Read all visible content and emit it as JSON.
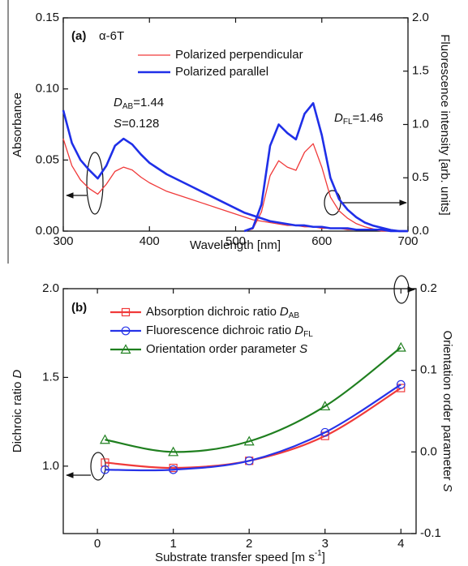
{
  "chart_data": [
    {
      "type": "line",
      "panel_label": "(a)",
      "compound": "α-6T",
      "x_label": "Wavelength [nm]",
      "y_label": "Absorbance",
      "y2_label": "Fluorescence intensity [arb. units]",
      "x": [
        300,
        310,
        320,
        330,
        340,
        350,
        360,
        370,
        380,
        390,
        400,
        410,
        420,
        430,
        440,
        450,
        460,
        470,
        480,
        490,
        500,
        510,
        520,
        530,
        540,
        550,
        560,
        570,
        580,
        590,
        600,
        610,
        620,
        630,
        640,
        650,
        660,
        670,
        680,
        690,
        700
      ],
      "xlim": [
        300,
        700
      ],
      "xticks": [
        300,
        400,
        500,
        600,
        700
      ],
      "ylim": [
        0,
        0.15
      ],
      "yticks": [
        {
          "value": 0,
          "label": "0.00"
        },
        {
          "value": 0.05,
          "label": "0.05"
        },
        {
          "value": 0.1,
          "label": "0.10"
        },
        {
          "value": 0.15,
          "label": "0.15"
        }
      ],
      "y2lim": [
        0,
        2
      ],
      "y2ticks": [
        {
          "value": 0,
          "label": "0.0"
        },
        0.5,
        {
          "value": 1,
          "label": "1.0"
        },
        1.5,
        {
          "value": 2,
          "label": "2.0"
        }
      ],
      "series": [
        {
          "name": "Polarized perpendicular",
          "color": "#f03a3a",
          "values": [
            0.065,
            0.046,
            0.036,
            0.03,
            0.026,
            0.033,
            0.042,
            0.045,
            0.043,
            0.038,
            0.034,
            0.031,
            0.028,
            0.026,
            0.024,
            0.022,
            0.02,
            0.018,
            0.016,
            0.014,
            0.012,
            0.01,
            0.008,
            0.007,
            0.006,
            0.005,
            0.004,
            0.004,
            0.003,
            0.003,
            0.002,
            0.002,
            0.002,
            0.001,
            0.001,
            0.001,
            0.001,
            0,
            0,
            0,
            0
          ],
          "fluorescence_values": [
            null,
            null,
            null,
            null,
            null,
            null,
            null,
            null,
            null,
            null,
            null,
            null,
            null,
            null,
            null,
            null,
            null,
            null,
            null,
            null,
            null,
            0,
            0.02,
            0.18,
            0.52,
            0.66,
            0.6,
            0.57,
            0.74,
            0.82,
            0.6,
            0.32,
            0.19,
            0.12,
            0.07,
            0.04,
            0.02,
            0.01,
            0,
            0,
            0
          ]
        },
        {
          "name": "Polarized parallel",
          "color": "#1f2fe8",
          "values": [
            0.085,
            0.062,
            0.05,
            0.043,
            0.037,
            0.046,
            0.06,
            0.065,
            0.061,
            0.054,
            0.048,
            0.044,
            0.04,
            0.037,
            0.034,
            0.031,
            0.028,
            0.025,
            0.022,
            0.019,
            0.016,
            0.013,
            0.011,
            0.009,
            0.007,
            0.006,
            0.005,
            0.004,
            0.004,
            0.003,
            0.003,
            0.002,
            0.002,
            0.002,
            0.001,
            0.001,
            0.001,
            0.001,
            0,
            0,
            0
          ],
          "fluorescence_values": [
            null,
            null,
            null,
            null,
            null,
            null,
            null,
            null,
            null,
            null,
            null,
            null,
            null,
            null,
            null,
            null,
            null,
            null,
            null,
            null,
            null,
            0,
            0.03,
            0.25,
            0.8,
            1.0,
            0.92,
            0.86,
            1.1,
            1.2,
            0.9,
            0.5,
            0.3,
            0.2,
            0.13,
            0.08,
            0.05,
            0.03,
            0.01,
            0,
            0
          ]
        }
      ],
      "annotations": [
        {
          "symbol": "D",
          "subscript": "AB",
          "text": "=1.44"
        },
        {
          "symbol": "S",
          "text": "=0.128"
        },
        {
          "symbol": "D",
          "subscript": "FL",
          "text": "=1.46"
        }
      ]
    },
    {
      "type": "line",
      "panel_label": "(b)",
      "x_label": "Substrate transfer speed [m s",
      "x_label_superscript": "-1",
      "x_label_end": "]",
      "y_label": "Dichroic ratio",
      "y_label_symbol": "D",
      "y2_label": "Orientation order parameter",
      "y2_label_symbol": "S",
      "x": [
        0.1,
        1,
        2,
        3,
        4
      ],
      "xlim": [
        -0.45,
        4.2
      ],
      "xticks": [
        0,
        1,
        2,
        3,
        4
      ],
      "ylim": [
        0.62,
        2.0
      ],
      "yticks": [
        {
          "value": 1,
          "label": "1.0"
        },
        1.5,
        {
          "value": 2,
          "label": "2.0"
        }
      ],
      "y2lim": [
        -0.1,
        0.2
      ],
      "y2ticks": [
        -0.1,
        {
          "value": 0,
          "label": "0.0"
        },
        0.1,
        0.2
      ],
      "series": [
        {
          "name": "Absorption dichroic ratio",
          "name_symbol": "D",
          "name_subscript": "AB",
          "color": "#f03a3a",
          "marker": "square",
          "values": [
            1.02,
            0.99,
            1.03,
            1.17,
            1.44
          ]
        },
        {
          "name": "Fluorescence dichroic ratio",
          "name_symbol": "D",
          "name_subscript": "FL",
          "color": "#2633e8",
          "marker": "circle",
          "values": [
            0.98,
            0.98,
            1.03,
            1.19,
            1.46
          ]
        },
        {
          "name": "Orientation order parameter",
          "name_symbol": "S",
          "color": "#1f7f1f",
          "marker": "triangle",
          "axis": "y2",
          "values": [
            0.015,
            0.0,
            0.013,
            0.056,
            0.128
          ]
        }
      ]
    }
  ]
}
